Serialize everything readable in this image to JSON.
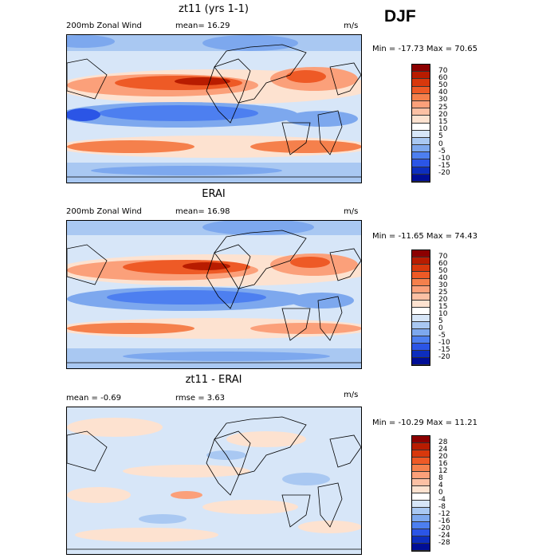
{
  "season": "DJF",
  "panels": [
    {
      "title": "zt11 (yrs 1-1)",
      "left_label": "200mb Zonal Wind",
      "mid_label": "mean=  16.29",
      "units": "m/s",
      "minmax": "Min = -17.73 Max =  70.65",
      "colorbar": {
        "labels": [
          "70",
          "60",
          "50",
          "40",
          "30",
          "25",
          "20",
          "15",
          "10",
          "5",
          "0",
          "-5",
          "-10",
          "-15",
          "-20"
        ],
        "colors": [
          "#8c0000",
          "#b81c00",
          "#d8380c",
          "#ee5a26",
          "#f5804c",
          "#fba07a",
          "#fcc0a4",
          "#fde2d0",
          "#ffffff",
          "#d7e6f8",
          "#a9c8f2",
          "#7da8ee",
          "#4d7ff0",
          "#2b55e6",
          "#0d2ebe",
          "#000e96"
        ]
      }
    },
    {
      "title": "ERAI",
      "left_label": "200mb Zonal Wind",
      "mid_label": "mean=  16.98",
      "units": "m/s",
      "minmax": "Min = -11.65 Max =  74.43",
      "colorbar": {
        "labels": [
          "70",
          "60",
          "50",
          "40",
          "30",
          "25",
          "20",
          "15",
          "10",
          "5",
          "0",
          "-5",
          "-10",
          "-15",
          "-20"
        ],
        "colors": [
          "#8c0000",
          "#b81c00",
          "#d8380c",
          "#ee5a26",
          "#f5804c",
          "#fba07a",
          "#fcc0a4",
          "#fde2d0",
          "#ffffff",
          "#d7e6f8",
          "#a9c8f2",
          "#7da8ee",
          "#4d7ff0",
          "#2b55e6",
          "#0d2ebe",
          "#000e96"
        ]
      }
    },
    {
      "title": "zt11 - ERAI",
      "left_label": "mean =   -0.69",
      "mid_label": "rmse =    3.63",
      "units": "m/s",
      "minmax": "Min = -10.29 Max =  11.21",
      "colorbar": {
        "labels": [
          "28",
          "24",
          "20",
          "16",
          "12",
          "8",
          "4",
          "0",
          "-4",
          "-8",
          "-12",
          "-16",
          "-20",
          "-24",
          "-28"
        ],
        "colors": [
          "#8c0000",
          "#b81c00",
          "#d8380c",
          "#ee5a26",
          "#f5804c",
          "#fba07a",
          "#fcc0a4",
          "#fde2d0",
          "#ffffff",
          "#d7e6f8",
          "#a9c8f2",
          "#7da8ee",
          "#4d7ff0",
          "#2b55e6",
          "#0d2ebe",
          "#000e96"
        ]
      }
    }
  ]
}
